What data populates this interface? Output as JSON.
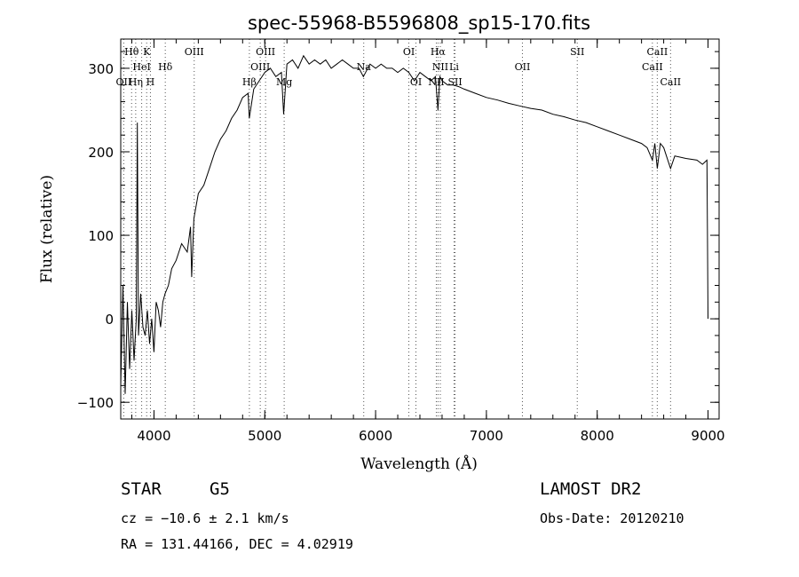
{
  "chart_data": {
    "type": "line",
    "title": "spec-55968-B5596808_sp15-170.fits",
    "xlabel": "Wavelength (Å)",
    "ylabel": "Flux (relative)",
    "xlim": [
      3700,
      9100
    ],
    "ylim": [
      -120,
      335
    ],
    "xticks": [
      4000,
      5000,
      6000,
      7000,
      8000,
      9000
    ],
    "yticks": [
      -100,
      0,
      100,
      200,
      300
    ],
    "grid": false,
    "series": [
      {
        "x": [
          3700,
          3720,
          3740,
          3760,
          3780,
          3800,
          3820,
          3840,
          3850,
          3860,
          3880,
          3900,
          3920,
          3940,
          3960,
          3980,
          4000,
          4020,
          4040,
          4060,
          4080,
          4100,
          4130,
          4160,
          4200,
          4250,
          4300,
          4330,
          4340,
          4360,
          4400,
          4450,
          4500,
          4550,
          4600,
          4650,
          4700,
          4750,
          4800,
          4850,
          4860,
          4900,
          4950,
          5000,
          5050,
          5100,
          5150,
          5170,
          5200,
          5250,
          5300,
          5350,
          5400,
          5450,
          5500,
          5550,
          5600,
          5650,
          5700,
          5750,
          5800,
          5850,
          5890,
          5950,
          6000,
          6050,
          6100,
          6150,
          6200,
          6250,
          6300,
          6350,
          6400,
          6450,
          6500,
          6540,
          6563,
          6580,
          6600,
          6650,
          6700,
          6750,
          6800,
          6900,
          7000,
          7100,
          7200,
          7300,
          7400,
          7500,
          7600,
          7700,
          7800,
          7900,
          8000,
          8100,
          8200,
          8300,
          8400,
          8450,
          8498,
          8520,
          8542,
          8570,
          8600,
          8662,
          8700,
          8800,
          8900,
          8950,
          8990,
          8995,
          9000
        ],
        "y": [
          -80,
          40,
          -90,
          20,
          -60,
          10,
          -50,
          0,
          235,
          -20,
          30,
          -10,
          -20,
          10,
          -30,
          0,
          -40,
          20,
          10,
          -10,
          20,
          30,
          40,
          60,
          70,
          90,
          80,
          110,
          50,
          120,
          150,
          160,
          180,
          200,
          215,
          225,
          240,
          250,
          265,
          270,
          240,
          275,
          285,
          295,
          300,
          290,
          295,
          245,
          305,
          310,
          300,
          315,
          305,
          310,
          305,
          310,
          300,
          305,
          310,
          305,
          300,
          300,
          290,
          305,
          300,
          305,
          300,
          300,
          295,
          300,
          295,
          285,
          295,
          290,
          285,
          290,
          250,
          290,
          285,
          280,
          280,
          278,
          275,
          270,
          265,
          262,
          258,
          255,
          252,
          250,
          245,
          242,
          238,
          235,
          230,
          225,
          220,
          215,
          210,
          205,
          190,
          210,
          180,
          210,
          205,
          180,
          195,
          192,
          190,
          185,
          190,
          100,
          0
        ]
      }
    ],
    "lines": [
      {
        "label": "Hθ",
        "x": 3798,
        "row": 0
      },
      {
        "label": "K",
        "x": 3934,
        "row": 0
      },
      {
        "label": "OIII",
        "x": 4363,
        "row": 0
      },
      {
        "label": "OIII",
        "x": 5007,
        "row": 0
      },
      {
        "label": "OI",
        "x": 6300,
        "row": 0
      },
      {
        "label": "Hα",
        "x": 6563,
        "row": 0
      },
      {
        "label": "SII",
        "x": 7820,
        "row": 0
      },
      {
        "label": "CaII",
        "x": 8542,
        "row": 0
      },
      {
        "label": "HeI",
        "x": 3889,
        "row": 1
      },
      {
        "label": "Hδ",
        "x": 4102,
        "row": 1
      },
      {
        "label": "OIII",
        "x": 4959,
        "row": 1
      },
      {
        "label": "Na",
        "x": 5893,
        "row": 1
      },
      {
        "label": "NII",
        "x": 6584,
        "row": 1
      },
      {
        "label": "Li",
        "x": 6708,
        "row": 1
      },
      {
        "label": "OII",
        "x": 7325,
        "row": 1
      },
      {
        "label": "CaII",
        "x": 8498,
        "row": 1
      },
      {
        "label": "OII",
        "x": 3727,
        "row": 2
      },
      {
        "label": "Hη",
        "x": 3835,
        "row": 2
      },
      {
        "label": "H",
        "x": 3968,
        "row": 2
      },
      {
        "label": "Hβ",
        "x": 4861,
        "row": 2
      },
      {
        "label": "Mg",
        "x": 5175,
        "row": 2
      },
      {
        "label": "OI",
        "x": 6364,
        "row": 2
      },
      {
        "label": "NII",
        "x": 6548,
        "row": 2
      },
      {
        "label": "SII",
        "x": 6717,
        "row": 2
      },
      {
        "label": "CaII",
        "x": 8662,
        "row": 2
      }
    ]
  },
  "info": {
    "class": "STAR",
    "subclass": "G5",
    "survey": "LAMOST DR2",
    "cz": "cz = −10.6 ± 2.1 km/s",
    "obs_date": "Obs-Date: 20120210",
    "radec": "RA = 131.44166, DEC =   4.02919"
  }
}
